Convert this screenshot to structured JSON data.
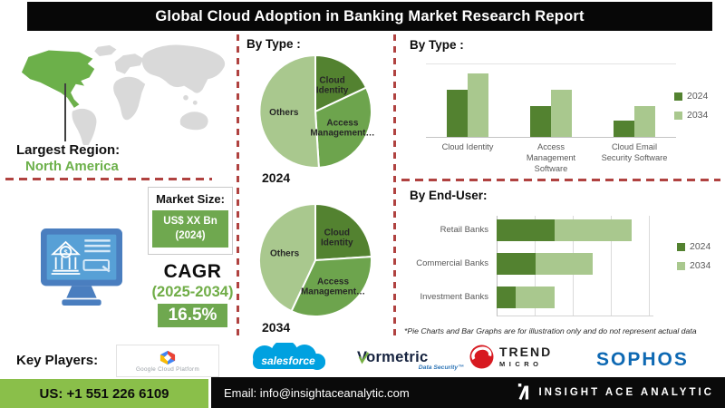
{
  "title": "Global Cloud Adoption in Banking Market  Research Report",
  "colors": {
    "green_dark": "#538230",
    "green_mid": "#6da44d",
    "green_light": "#a9c88e",
    "badge_green": "#6fa84f",
    "footer_green": "#8abf4a",
    "na_green": "#6cb04a",
    "dashed_red": "#b04240",
    "monitor_blue": "#4a7ebf",
    "screen_blue": "#57a0d6",
    "salesforce_blue": "#00a1e0",
    "trend_red": "#d71920",
    "sophos_blue": "#0e69b3",
    "text_green": "#70ad47"
  },
  "map": {
    "largest_region_label": "Largest Region:",
    "largest_region_value": "North America"
  },
  "market": {
    "size_label": "Market Size:",
    "size_value": "US$ XX Bn",
    "size_year": "(2024)",
    "cagr_label": "CAGR",
    "cagr_period": "(2025-2034)",
    "cagr_value": "16.5%"
  },
  "chart_data": [
    {
      "type": "pie",
      "title": "By Type :",
      "year_label": "2024",
      "slices": [
        {
          "label": "Cloud Identity",
          "value": 18,
          "color": "#538230"
        },
        {
          "label": "Access Management…",
          "value": 31,
          "color": "#6da44d"
        },
        {
          "label": "Others",
          "value": 51,
          "color": "#a9c88e"
        }
      ]
    },
    {
      "type": "pie",
      "title": "By Type :",
      "year_label": "2034",
      "slices": [
        {
          "label": "Cloud Identity",
          "value": 24,
          "color": "#538230"
        },
        {
          "label": "Access Management…",
          "value": 33,
          "color": "#6da44d"
        },
        {
          "label": "Others",
          "value": 43,
          "color": "#a9c88e"
        }
      ]
    },
    {
      "type": "bar",
      "title": "By  Type :",
      "categories": [
        "Cloud Identity",
        "Access Management Software",
        "Cloud Email Security Software"
      ],
      "series": [
        {
          "name": "2024",
          "color": "#538230",
          "values": [
            65,
            43,
            22
          ]
        },
        {
          "name": "2034",
          "color": "#a9c88e",
          "values": [
            87,
            65,
            43
          ]
        }
      ],
      "ylim": [
        0,
        100
      ],
      "grid": true,
      "legend_position": "right"
    },
    {
      "type": "stacked-bar-horizontal",
      "title": "By End-User:",
      "categories": [
        "Retail Banks",
        "Commercial Banks",
        "Investment Banks"
      ],
      "series": [
        {
          "name": "2024",
          "color": "#538230",
          "values": [
            30,
            20,
            10
          ]
        },
        {
          "name": "2034",
          "color": "#a9c88e",
          "values": [
            40,
            30,
            20
          ]
        }
      ],
      "xlim": [
        0,
        80
      ],
      "gridline_step": 20,
      "legend_position": "right"
    }
  ],
  "footnote": "*Pie Charts and Bar Graphs are for illustration only and do not represent actual data",
  "key_players": {
    "label": "Key Players:",
    "players": [
      {
        "name": "Google Cloud Platform"
      },
      {
        "name": "salesforce"
      },
      {
        "name": "Vormetric",
        "sub": "Data Security™"
      },
      {
        "name": "TREND",
        "sub": "MICRO"
      },
      {
        "name": "SOPHOS"
      }
    ]
  },
  "footer": {
    "phone": "US: +1 551 226 6109",
    "email": "Email: info@insightaceanalytic.com",
    "brand": "INSIGHT ACE ANALYTIC"
  }
}
